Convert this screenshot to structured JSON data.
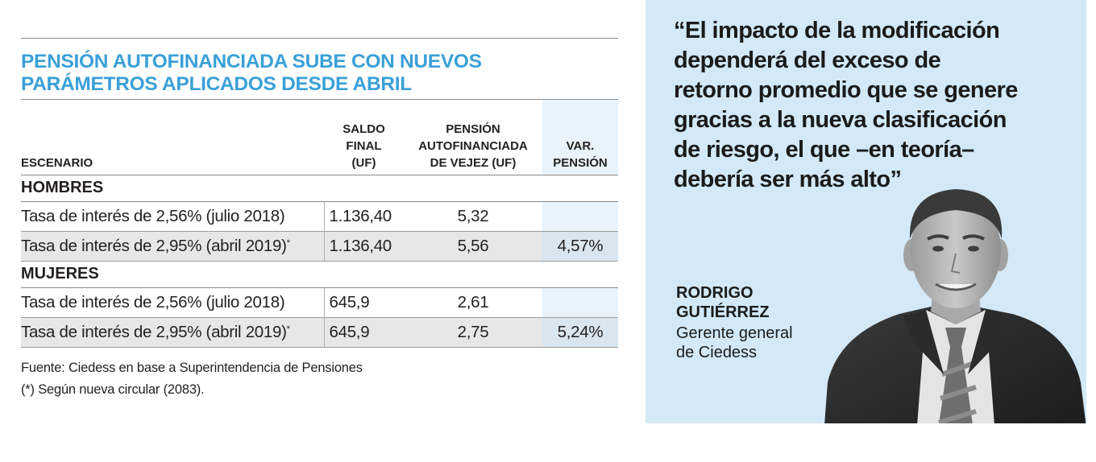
{
  "table": {
    "title_line1": "PENSIÓN AUTOFINANCIADA SUBE CON NUEVOS",
    "title_line2": "PARÁMETROS APLICADOS DESDE ABRIL",
    "headers": {
      "escenario": "ESCENARIO",
      "saldo": [
        "SALDO",
        "FINAL",
        "(UF)"
      ],
      "pension": [
        "PENSIÓN",
        "AUTOFINANCIADA",
        "DE VEJEZ (UF)"
      ],
      "var": [
        "VAR.",
        "PENSIÓN"
      ]
    },
    "groups": [
      {
        "name": "HOMBRES",
        "rows": [
          {
            "escenario": "Tasa de interés de 2,56% (julio 2018)",
            "star": "",
            "saldo": "1.136,40",
            "pension": "5,32",
            "var": ""
          },
          {
            "escenario": "Tasa de interés de 2,95% (abril 2019)",
            "star": "*",
            "saldo": "1.136,40",
            "pension": "5,56",
            "var": "4,57%"
          }
        ]
      },
      {
        "name": "MUJERES",
        "rows": [
          {
            "escenario": "Tasa de interés de 2,56% (julio 2018)",
            "star": "",
            "saldo": "645,9",
            "pension": "2,61",
            "var": ""
          },
          {
            "escenario": "Tasa de interés de 2,95% (abril 2019)",
            "star": "*",
            "saldo": "645,9",
            "pension": "2,75",
            "var": "5,24%"
          }
        ]
      }
    ],
    "source": "Fuente: Ciedess en base a Superintendencia de Pensiones",
    "footnote": "(*) Según nueva circular (2083)."
  },
  "quote": {
    "lines": [
      "“El impacto de la modificación",
      "dependerá del exceso de",
      "retorno promedio que se genere",
      "gracias a la nueva clasificación",
      "de riesgo, el que –en teoría–",
      "debería ser más alto”"
    ],
    "name_line1": "RODRIGO",
    "name_line2": "GUTIÉRREZ",
    "role_line1": "Gerente general",
    "role_line2": "de Ciedess"
  },
  "colors": {
    "title_blue": "#3aa0d8",
    "panel_bg": "#d3e9f8",
    "row_shade": "#e7e7e7"
  }
}
